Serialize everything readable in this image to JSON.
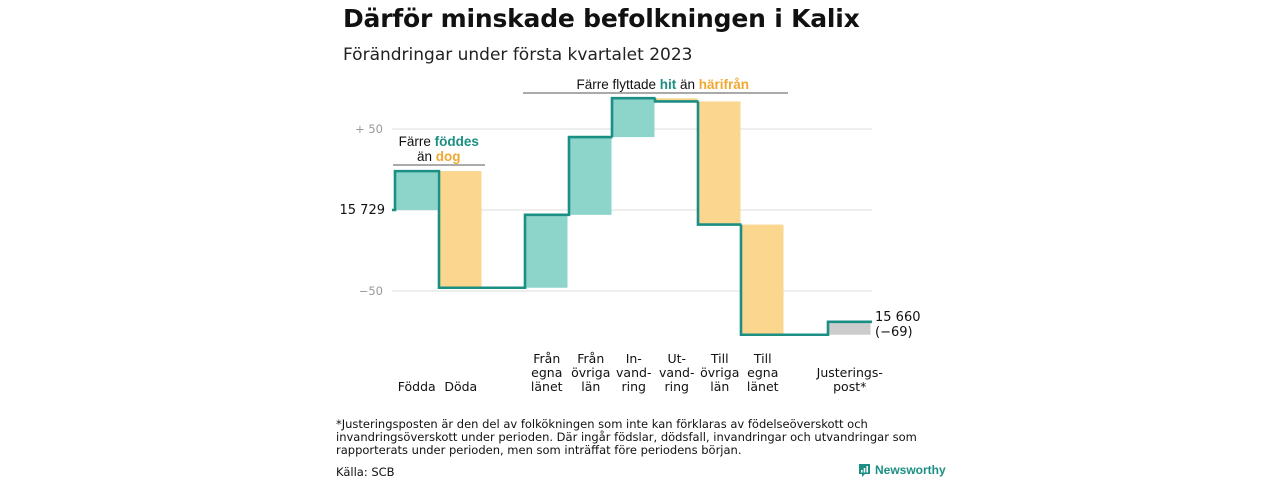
{
  "title": "Därför minskade befolkningen i Kalix",
  "subtitle": "Förändringar under första kvartalet 2023",
  "footnote": "*Justeringsposten är den del av folkökningen som inte kan förklaras av födelseöverskott och invandringsöverskott under perioden. Där ingår födslar, dödsfall, invandringar och utvandringar som rapporterats under perioden, men som inträffat före periodens början.",
  "source": "Källa: SCB",
  "brand": "Newsworthy",
  "colors": {
    "increase": "#8dd5cb",
    "decrease": "#fad68f",
    "adjustment": "#cccccc",
    "line": "#1b8f83",
    "grid": "#dddddd",
    "teal_text": "#1b8f83",
    "orange_text": "#f0a830"
  },
  "chart_data": {
    "type": "waterfall",
    "start_value": 15729,
    "start_label": "15 729",
    "end_label": "15 660",
    "end_change_label": "(−69)",
    "ytick_labels": [
      "+ 50",
      "−50"
    ],
    "ytick_values": [
      50,
      -50
    ],
    "ylim": [
      -80,
      80
    ],
    "steps": [
      {
        "label": "Födda",
        "change": 24,
        "kind": "increase"
      },
      {
        "label": "Döda",
        "change": -72,
        "kind": "decrease"
      },
      {
        "label": "Från egna länet",
        "change": 45,
        "kind": "increase"
      },
      {
        "label": "Från övriga län",
        "change": 48,
        "kind": "increase"
      },
      {
        "label": "In-vand-ring",
        "change": 24,
        "kind": "increase"
      },
      {
        "label": "Ut-vand-ring",
        "change": -2,
        "kind": "decrease"
      },
      {
        "label": "Till övriga län",
        "change": -76,
        "kind": "decrease"
      },
      {
        "label": "Till egna länet",
        "change": -68,
        "kind": "decrease"
      },
      {
        "label": "Justerings-post*",
        "change": 8,
        "kind": "adjustment"
      }
    ],
    "category_label_lines": [
      [
        "Födda"
      ],
      [
        "Döda"
      ],
      [
        "Från",
        "egna",
        "länet"
      ],
      [
        "Från",
        "övriga",
        "län"
      ],
      [
        "In-",
        "vand-",
        "ring"
      ],
      [
        "Ut-",
        "vand-",
        "ring"
      ],
      [
        "Till",
        "övriga",
        "län"
      ],
      [
        "Till",
        "egna",
        "länet"
      ],
      [
        "Justerings-",
        "post*"
      ]
    ],
    "annotations": {
      "group1": {
        "line1_prefix": "Färre",
        "line1_teal": "föddes",
        "line2_prefix": "än",
        "line2_orange": "dog"
      },
      "group2": {
        "prefix": "Färre flyttade",
        "teal": "hit",
        "middle": "än",
        "orange": "härifrån"
      }
    }
  }
}
